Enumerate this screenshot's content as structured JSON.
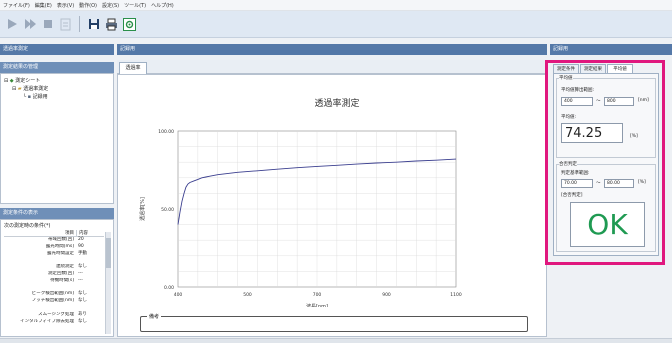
{
  "menu": [
    "ファイル(F)",
    "編集(E)",
    "表示(V)",
    "動作(O)",
    "設定(S)",
    "ツール(T)",
    "ヘルプ(H)"
  ],
  "left": {
    "header": "透過率測定",
    "tree_header": "測定結果の管理",
    "tree_root": "測定シート",
    "tree_child": "透過率測定",
    "tree_leaf": "記録用",
    "cond_header": "測定条件の表示",
    "cond_title": "次の測定時の条件(*)",
    "cond_col_item": "項目",
    "cond_col_value": "内容",
    "cond_rows": [
      {
        "k": "帯域回数[回]",
        "v": "20"
      },
      {
        "k": "露光時間[ms]",
        "v": "90"
      },
      {
        "k": "露光時間設定",
        "v": "手動"
      },
      {
        "k": "",
        "v": ""
      },
      {
        "k": "連続測定",
        "v": "なし"
      },
      {
        "k": "測定回数[回]",
        "v": "---"
      },
      {
        "k": "待機時間[s]",
        "v": "---"
      },
      {
        "k": "",
        "v": ""
      },
      {
        "k": "ピーク検出範囲[nm]",
        "v": "なし"
      },
      {
        "k": "ノッチ検出範囲[nm]",
        "v": "なし"
      },
      {
        "k": "",
        "v": ""
      },
      {
        "k": "スムージング処理",
        "v": "あり"
      },
      {
        "k": "インタルフィイブ除去処理",
        "v": "なし"
      }
    ]
  },
  "center": {
    "header": "記録用",
    "tab": "透過率",
    "remark_label": "備考"
  },
  "right": {
    "header": "記録用",
    "tabs": [
      "測定条件",
      "測定結果",
      "平均値"
    ],
    "avg_group": "平均値",
    "range_label": "平均値算出範囲:",
    "range_from": "400",
    "range_to": "800",
    "range_unit": "[nm]",
    "avg_label": "平均値:",
    "avg_value": "74.25",
    "avg_unit": "[%]",
    "judge_group": "合否判定",
    "judge_range_label": "判定基準範囲:",
    "judge_from": "70.00",
    "judge_to": "80.00",
    "judge_unit": "[%]",
    "judge_label": "[合否判定]",
    "judge_result": "OK",
    "ok_color": "#1f9a52",
    "highlight_color": "#e0177e"
  },
  "chart_data": {
    "type": "line",
    "title": "透過率測定",
    "xlabel": "波長[nm]",
    "ylabel": "透過率[%]",
    "xlim": [
      400,
      1100
    ],
    "ylim": [
      0,
      100
    ],
    "x_ticks": [
      "400",
      "500",
      "700",
      "900",
      "1100"
    ],
    "y_ticks": [
      "100.00",
      "50.00",
      "0.00"
    ],
    "grid": true,
    "series": [
      {
        "x": [
          400,
          405,
          410,
          415,
          420,
          425,
          430,
          440,
          450,
          460,
          470,
          480,
          500,
          550,
          600,
          650,
          700,
          750,
          800,
          850,
          900,
          950,
          1000,
          1050,
          1100
        ],
        "y": [
          40,
          48,
          55,
          60,
          64,
          66,
          67,
          68,
          69,
          70,
          70.5,
          71,
          72,
          73.5,
          74.5,
          75.5,
          76.5,
          77.3,
          78,
          78.8,
          79.5,
          80,
          80.8,
          81.3,
          82
        ]
      }
    ]
  }
}
